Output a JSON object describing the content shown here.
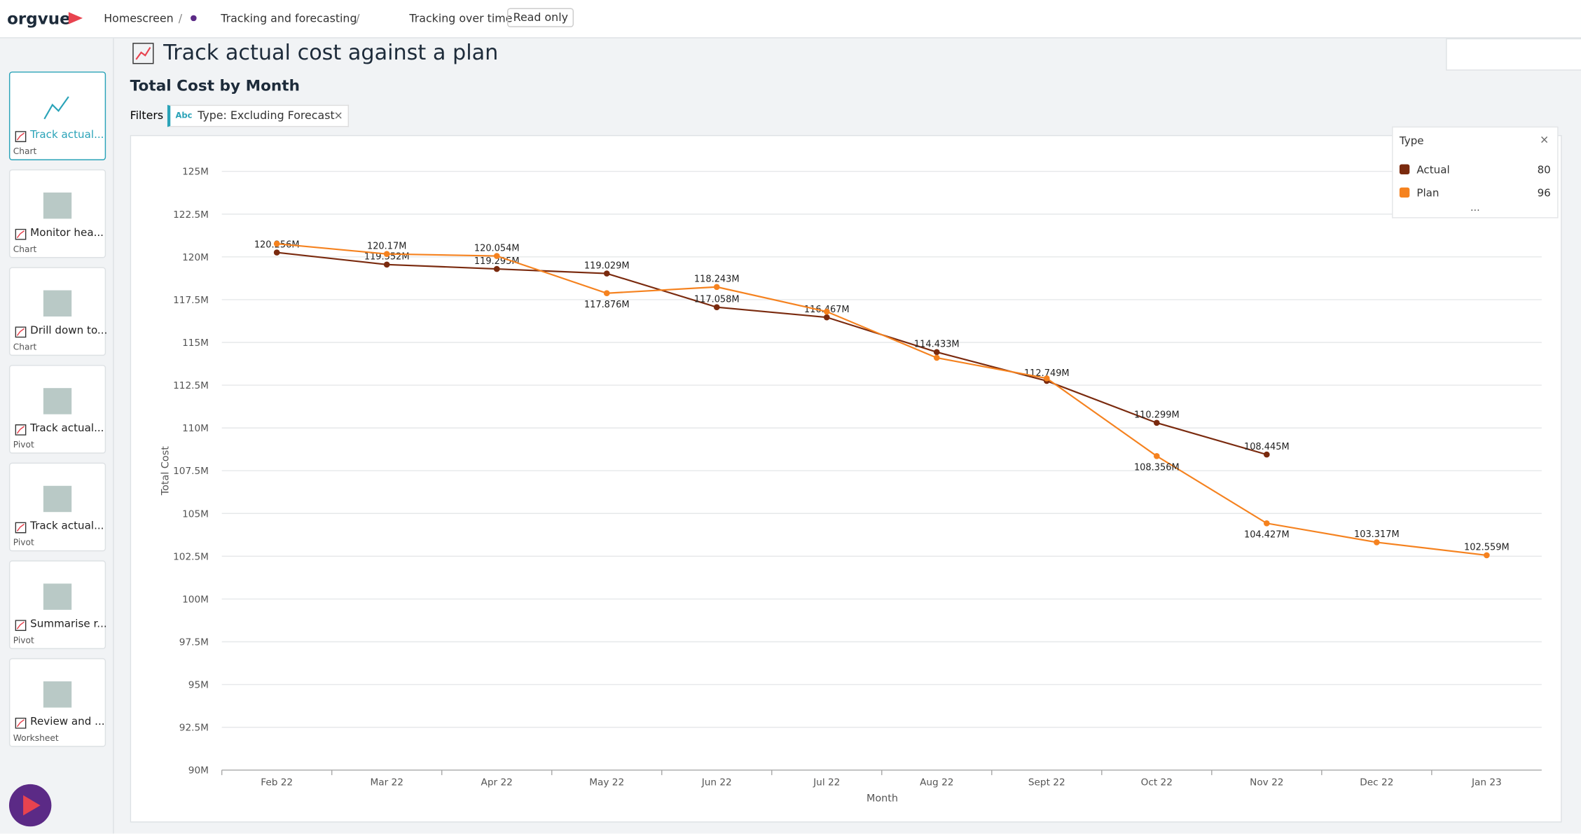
{
  "header": {
    "logo": "orgvue",
    "breadcrumbs": [
      "Homescreen",
      "Tracking and forecasting",
      "Tracking over time"
    ],
    "badge": "Read only"
  },
  "sidebar": [
    {
      "title": "Track actual...",
      "kind": "Chart"
    },
    {
      "title": "Monitor hea...",
      "kind": "Chart"
    },
    {
      "title": "Drill down to...",
      "kind": "Chart"
    },
    {
      "title": "Track actual...",
      "kind": "Pivot"
    },
    {
      "title": "Track actual...",
      "kind": "Pivot"
    },
    {
      "title": "Summarise r...",
      "kind": "Pivot"
    },
    {
      "title": "Review and ...",
      "kind": "Worksheet"
    }
  ],
  "page": {
    "title": "Track actual cost against a plan",
    "filters_label": "Filters",
    "filter_tag": "Abc",
    "filter": "Type: Excluding Forecast"
  },
  "chart_data": {
    "type": "line",
    "title": "Total Cost by Month",
    "x_label": "Month",
    "y_label": "Total Cost",
    "categories": [
      "Feb 22",
      "Mar 22",
      "Apr 22",
      "May 22",
      "Jun 22",
      "Jul 22",
      "Aug 22",
      "Sept 22",
      "Oct 22",
      "Nov 22",
      "Dec 22",
      "Jan 23"
    ],
    "series": [
      {
        "name": "Actual",
        "count": 80,
        "color": "#7a2a0e",
        "values": [
          120.256,
          119.552,
          119.295,
          119.029,
          117.058,
          116.467,
          114.433,
          112.749,
          110.299,
          108.445,
          null,
          null
        ],
        "value_labels": [
          "120.256M",
          "119.552M",
          "119.295M",
          "119.029M",
          "117.058M",
          "116.467M",
          "114.433M",
          "112.749M",
          "110.299M",
          "108.445M",
          null,
          null
        ]
      },
      {
        "name": "Plan",
        "count": 96,
        "color": "#f5821f",
        "values": [
          120.77,
          120.17,
          120.054,
          117.876,
          118.243,
          116.8,
          114.1,
          112.9,
          108.356,
          104.427,
          103.317,
          102.559
        ],
        "value_labels": [
          null,
          "120.17M",
          "120.054M",
          "117.876M",
          "118.243M",
          null,
          null,
          null,
          "108.356M",
          "104.427M",
          "103.317M",
          "102.559M"
        ]
      }
    ],
    "ylim": [
      90,
      125
    ],
    "yticks": [
      {
        "value": 90,
        "label": "90M"
      },
      {
        "value": 92.5,
        "label": "92.5M"
      },
      {
        "value": 95,
        "label": "95M"
      },
      {
        "value": 97.5,
        "label": "97.5M"
      },
      {
        "value": 100,
        "label": "100M"
      },
      {
        "value": 102.5,
        "label": "102.5M"
      },
      {
        "value": 105,
        "label": "105M"
      },
      {
        "value": 107.5,
        "label": "107.5M"
      },
      {
        "value": 110,
        "label": "110M"
      },
      {
        "value": 112.5,
        "label": "112.5M"
      },
      {
        "value": 115,
        "label": "115M"
      },
      {
        "value": 117.5,
        "label": "117.5M"
      },
      {
        "value": 120,
        "label": "120M"
      },
      {
        "value": 122.5,
        "label": "122.5M"
      },
      {
        "value": 125,
        "label": "125M"
      }
    ],
    "grid": true,
    "legend": {
      "title": "Type",
      "position": "top-right"
    }
  }
}
